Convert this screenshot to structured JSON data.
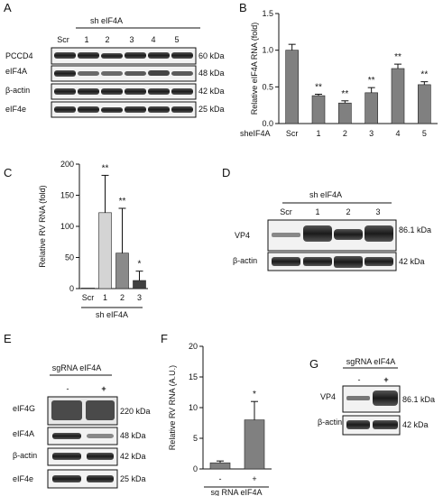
{
  "panels": {
    "A": {
      "letter": "A",
      "header": "sh eIF4A",
      "lanes": [
        "Scr",
        "1",
        "2",
        "3",
        "4",
        "5"
      ],
      "rows": [
        {
          "name": "PCCD4",
          "size": "60 kDa"
        },
        {
          "name": "eIF4A",
          "size": "48 kDa"
        },
        {
          "name": "β-actin",
          "size": "42 kDa"
        },
        {
          "name": "eIF4e",
          "size": "25 kDa"
        }
      ]
    },
    "D": {
      "letter": "D",
      "header": "sh eIF4A",
      "lanes": [
        "Scr",
        "1",
        "2",
        "3"
      ],
      "rows": [
        {
          "name": "VP4",
          "size": "86.1 kDa"
        },
        {
          "name": "β-actin",
          "size": "42 kDa"
        }
      ]
    },
    "E": {
      "letter": "E",
      "header": "sgRNA eIF4A",
      "lanes": [
        "-",
        "+"
      ],
      "rows": [
        {
          "name": "eIF4G",
          "size": "220 kDa"
        },
        {
          "name": "eIF4A",
          "size": "48 kDa"
        },
        {
          "name": "β-actin",
          "size": "42 kDa"
        },
        {
          "name": "eIF4e",
          "size": "25 kDa"
        }
      ]
    },
    "G": {
      "letter": "G",
      "header": "sgRNA eIF4A",
      "lanes": [
        "-",
        "+"
      ],
      "rows": [
        {
          "name": "VP4",
          "size": "86.1 kDa"
        },
        {
          "name": "β-actin",
          "size": "42 kDa"
        }
      ]
    }
  },
  "chart_data": [
    {
      "panel": "B",
      "type": "bar",
      "ylabel": "Relative eIF4A RNA (fold)",
      "xlabel_prefix": "sheIF4A",
      "categories": [
        "Scr",
        "1",
        "2",
        "3",
        "4",
        "5"
      ],
      "values": [
        1.0,
        0.38,
        0.28,
        0.42,
        0.75,
        0.53
      ],
      "errors": [
        0.08,
        0.02,
        0.03,
        0.07,
        0.06,
        0.04
      ],
      "annotations": [
        "",
        "**",
        "**",
        "**",
        "**",
        "**"
      ],
      "ylim": [
        0,
        1.5
      ],
      "yticks": [
        "0.0",
        "0.5",
        "1.0",
        "1.5"
      ],
      "colors": [
        "#808080"
      ]
    },
    {
      "panel": "C",
      "type": "bar",
      "ylabel": "Relative RV RNA (fold)",
      "xlabel": "sh eIF4A",
      "categories": [
        "Scr",
        "1",
        "2",
        "3"
      ],
      "values": [
        1,
        122,
        57,
        13
      ],
      "errors": [
        0,
        60,
        72,
        15
      ],
      "annotations": [
        "",
        "**",
        "**",
        "*"
      ],
      "ylim": [
        0,
        200
      ],
      "yticks": [
        "0",
        "50",
        "100",
        "150",
        "200"
      ],
      "colors": [
        "#b0b0b0",
        "#d4d4d4",
        "#8a8a8a",
        "#404040"
      ]
    },
    {
      "panel": "F",
      "type": "bar",
      "ylabel": "Relative RV RNA (A.U.)",
      "xlabel": "sg RNA eIF4A",
      "categories": [
        "-",
        "+"
      ],
      "values": [
        1.0,
        8.0
      ],
      "errors": [
        0.3,
        3.0
      ],
      "annotations": [
        "",
        "*"
      ],
      "ylim": [
        0,
        20
      ],
      "yticks": [
        "0",
        "5",
        "10",
        "15",
        "20"
      ],
      "colors": [
        "#808080"
      ]
    }
  ]
}
